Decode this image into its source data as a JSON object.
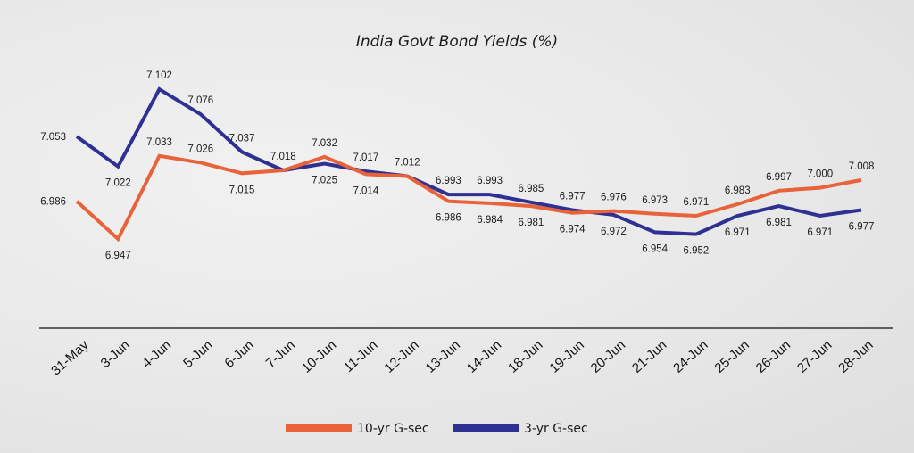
{
  "chart_data": {
    "type": "line",
    "title": "India Govt Bond Yields (%)",
    "xlabel": "",
    "ylabel": "",
    "categories": [
      "31-May",
      "3-Jun",
      "4-Jun",
      "5-Jun",
      "6-Jun",
      "7-Jun",
      "10-Jun",
      "11-Jun",
      "12-Jun",
      "13-Jun",
      "14-Jun",
      "18-Jun",
      "19-Jun",
      "20-Jun",
      "21-Jun",
      "24-Jun",
      "25-Jun",
      "26-Jun",
      "27-Jun",
      "28-Jun"
    ],
    "series": [
      {
        "name": "10-yr G-sec",
        "color": "#e8623a",
        "values": [
          6.986,
          6.947,
          7.033,
          7.026,
          7.015,
          7.018,
          7.032,
          7.014,
          7.012,
          6.986,
          6.984,
          6.981,
          6.974,
          6.976,
          6.973,
          6.971,
          6.983,
          6.997,
          7.0,
          7.008
        ],
        "labels": [
          "6.986",
          "6.947",
          "7.033",
          "7.026",
          "7.015",
          "",
          "7.032",
          "7.014",
          "",
          "6.986",
          "6.984",
          "6.981",
          "6.974",
          "6.976",
          "6.973",
          "6.971",
          "6.983",
          "6.997",
          "7.000",
          "7.008"
        ],
        "label_pos": [
          "left",
          "below",
          "above",
          "above",
          "below",
          "",
          "above",
          "below",
          "",
          "below",
          "below",
          "below",
          "below",
          "above",
          "above",
          "above",
          "above",
          "above",
          "above",
          "above"
        ]
      },
      {
        "name": "3-yr G-sec",
        "color": "#2e3192",
        "values": [
          7.053,
          7.022,
          7.102,
          7.076,
          7.037,
          7.018,
          7.025,
          7.017,
          7.012,
          6.993,
          6.993,
          6.985,
          6.977,
          6.972,
          6.954,
          6.952,
          6.971,
          6.981,
          6.971,
          6.977
        ],
        "labels": [
          "7.053",
          "7.022",
          "7.102",
          "7.076",
          "7.037",
          "7.018",
          "7.025",
          "7.017",
          "7.012",
          "6.993",
          "6.993",
          "6.985",
          "6.977",
          "6.972",
          "6.954",
          "6.952",
          "6.971",
          "6.981",
          "6.971",
          "6.977"
        ],
        "label_pos": [
          "left",
          "below",
          "above",
          "above",
          "above",
          "above",
          "below",
          "above",
          "above",
          "above",
          "above",
          "above",
          "above",
          "below",
          "below",
          "below",
          "below",
          "below",
          "below",
          "below"
        ]
      }
    ],
    "ylim": [
      6.94,
      7.11
    ],
    "grid": false,
    "legend_position": "bottom-center",
    "x_axis_line": true
  }
}
